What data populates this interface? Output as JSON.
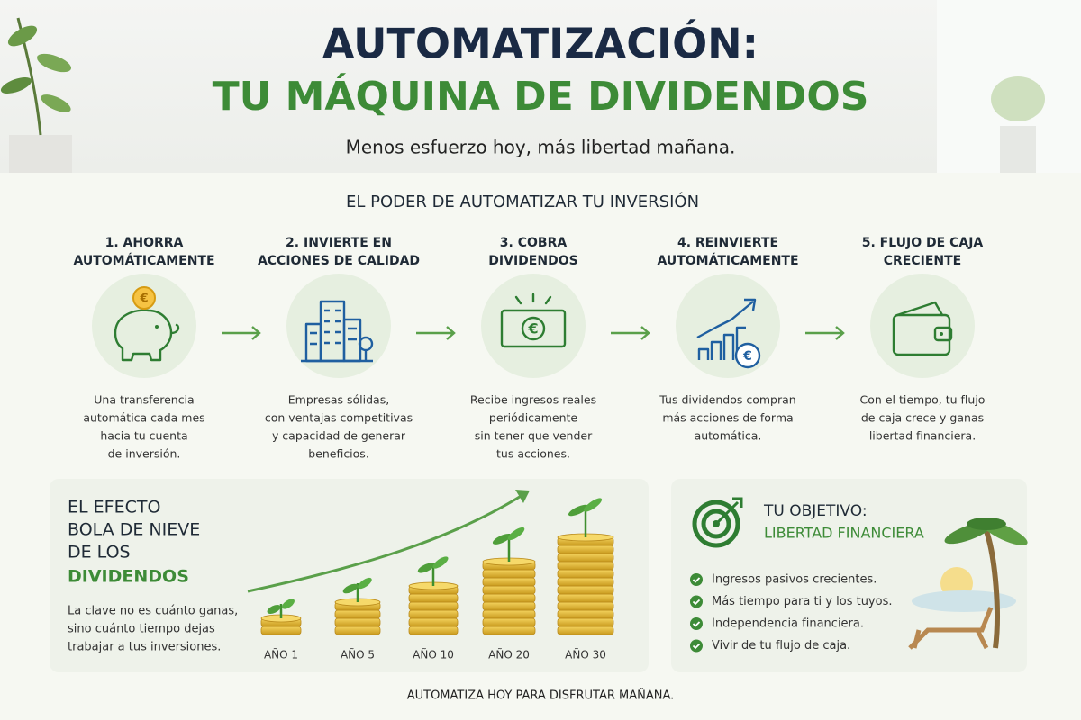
{
  "header": {
    "title_line1": "AUTOMATIZACIÓN:",
    "title_line2": "TU MÁQUINA DE DIVIDENDOS",
    "subtitle": "Menos esfuerzo hoy, más libertad mañana."
  },
  "section_title": "EL PODER DE AUTOMATIZAR TU INVERSIÓN",
  "steps": [
    {
      "title": [
        "1. AHORRA",
        "AUTOMÁTICAMENTE"
      ],
      "text": [
        "Una transferencia",
        "automática cada mes",
        "hacia tu cuenta",
        "de inversión."
      ]
    },
    {
      "title": [
        "2. INVIERTE EN",
        "ACCIONES DE CALIDAD"
      ],
      "text": [
        "Empresas sólidas,",
        "con ventajas competitivas",
        "y capacidad de generar",
        "beneficios."
      ]
    },
    {
      "title": [
        "3. COBRA",
        "DIVIDENDOS"
      ],
      "text": [
        "Recibe ingresos reales",
        "periódicamente",
        "sin tener que vender",
        "tus acciones."
      ]
    },
    {
      "title": [
        "4. REINVIERTE",
        "AUTOMÁTICAMENTE"
      ],
      "text": [
        "Tus dividendos compran",
        "más acciones de forma",
        "automática."
      ]
    },
    {
      "title": [
        "5. FLUJO DE CAJA",
        "CRECIENTE"
      ],
      "text": [
        "Con el tiempo, tu flujo",
        "de caja crece y ganas",
        "libertad financiera."
      ]
    }
  ],
  "snowball": {
    "title": [
      "EL EFECTO",
      "BOLA DE NIEVE",
      "DE LOS",
      "DIVIDENDOS"
    ],
    "text": [
      "La clave no es cuánto ganas,",
      "sino cuánto tiempo dejas",
      "trabajar a tus inversiones."
    ],
    "years": [
      "AÑO 1",
      "AÑO 5",
      "AÑO 10",
      "AÑO 20",
      "AÑO 30"
    ]
  },
  "goal": {
    "title": "TU OBJETIVO:",
    "subtitle": "LIBERTAD FINANCIERA",
    "items": [
      "Ingresos pasivos crecientes.",
      "Más tiempo para ti y los tuyos.",
      "Independencia financiera.",
      "Vivir de tu flujo de caja."
    ]
  },
  "footer": "AUTOMATIZA HOY PARA DISFRUTAR MAÑANA."
}
